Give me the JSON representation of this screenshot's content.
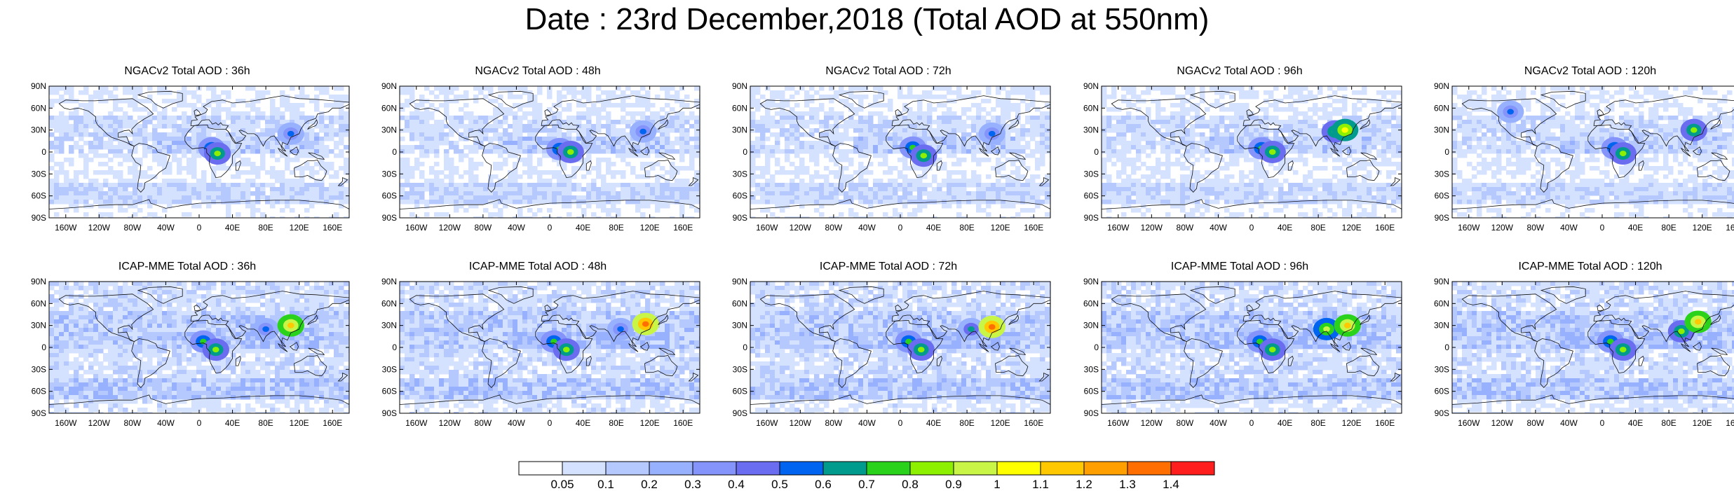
{
  "title": "Date : 23rd December,2018 (Total AOD at 550nm)",
  "lat_ticks": [
    "90N",
    "60N",
    "30N",
    "0",
    "30S",
    "60S",
    "90S"
  ],
  "lon_ticks": [
    "160W",
    "120W",
    "80W",
    "40W",
    "0",
    "40E",
    "80E",
    "120E",
    "160E"
  ],
  "lon_tick_values": [
    -160,
    -120,
    -80,
    -40,
    0,
    40,
    80,
    120,
    160
  ],
  "lat_tick_values": [
    90,
    60,
    30,
    0,
    -30,
    -60,
    -90
  ],
  "panels": [
    {
      "title": "NGACv2 Total AOD : 36h",
      "model": "NGACv2",
      "lead": 36,
      "hotspots": [
        {
          "lon": 15,
          "lat": 5,
          "level": 8
        },
        {
          "lon": 22,
          "lat": -2,
          "level": 9
        },
        {
          "lon": 110,
          "lat": 25,
          "level": 6
        }
      ]
    },
    {
      "title": "NGACv2 Total AOD : 48h",
      "model": "NGACv2",
      "lead": 48,
      "hotspots": [
        {
          "lon": 12,
          "lat": 4,
          "level": 8
        },
        {
          "lon": 25,
          "lat": 0,
          "level": 9
        },
        {
          "lon": 112,
          "lat": 28,
          "level": 6
        }
      ]
    },
    {
      "title": "NGACv2 Total AOD : 72h",
      "model": "NGACv2",
      "lead": 72,
      "hotspots": [
        {
          "lon": 15,
          "lat": 6,
          "level": 8
        },
        {
          "lon": 28,
          "lat": -5,
          "level": 9
        },
        {
          "lon": 110,
          "lat": 25,
          "level": 6
        }
      ]
    },
    {
      "title": "NGACv2 Total AOD : 96h",
      "model": "NGACv2",
      "lead": 96,
      "hotspots": [
        {
          "lon": 12,
          "lat": 5,
          "level": 8
        },
        {
          "lon": 25,
          "lat": 0,
          "level": 9
        },
        {
          "lon": 100,
          "lat": 28,
          "level": 9
        },
        {
          "lon": 112,
          "lat": 30,
          "level": 11
        }
      ]
    },
    {
      "title": "NGACv2 Total AOD : 120h",
      "model": "NGACv2",
      "lead": 120,
      "hotspots": [
        {
          "lon": 15,
          "lat": 5,
          "level": 8
        },
        {
          "lon": 25,
          "lat": -2,
          "level": 9
        },
        {
          "lon": 110,
          "lat": 30,
          "level": 9
        },
        {
          "lon": -110,
          "lat": 55,
          "level": 6
        }
      ]
    },
    {
      "title": "ICAP-MME Total AOD : 36h",
      "model": "ICAP-MME",
      "lead": 36,
      "hotspots": [
        {
          "lon": 5,
          "lat": 8,
          "level": 8
        },
        {
          "lon": 20,
          "lat": -3,
          "level": 9
        },
        {
          "lon": 80,
          "lat": 25,
          "level": 6
        },
        {
          "lon": 110,
          "lat": 30,
          "level": 12
        }
      ]
    },
    {
      "title": "ICAP-MME Total AOD : 48h",
      "model": "ICAP-MME",
      "lead": 48,
      "hotspots": [
        {
          "lon": 5,
          "lat": 8,
          "level": 8
        },
        {
          "lon": 20,
          "lat": -3,
          "level": 9
        },
        {
          "lon": 85,
          "lat": 25,
          "level": 6
        },
        {
          "lon": 115,
          "lat": 32,
          "level": 14
        }
      ]
    },
    {
      "title": "ICAP-MME Total AOD : 72h",
      "model": "ICAP-MME",
      "lead": 72,
      "hotspots": [
        {
          "lon": 10,
          "lat": 8,
          "level": 8
        },
        {
          "lon": 25,
          "lat": -3,
          "level": 9
        },
        {
          "lon": 85,
          "lat": 25,
          "level": 7
        },
        {
          "lon": 110,
          "lat": 28,
          "level": 14
        }
      ]
    },
    {
      "title": "ICAP-MME Total AOD : 96h",
      "model": "ICAP-MME",
      "lead": 96,
      "hotspots": [
        {
          "lon": 10,
          "lat": 8,
          "level": 8
        },
        {
          "lon": 25,
          "lat": -3,
          "level": 9
        },
        {
          "lon": 90,
          "lat": 25,
          "level": 10
        },
        {
          "lon": 115,
          "lat": 30,
          "level": 12
        }
      ]
    },
    {
      "title": "ICAP-MME Total AOD : 120h",
      "model": "ICAP-MME",
      "lead": 120,
      "hotspots": [
        {
          "lon": 10,
          "lat": 8,
          "level": 8
        },
        {
          "lon": 25,
          "lat": -3,
          "level": 9
        },
        {
          "lon": 95,
          "lat": 22,
          "level": 9
        },
        {
          "lon": 115,
          "lat": 35,
          "level": 12
        }
      ]
    }
  ],
  "colorbar": {
    "labels": [
      "0.05",
      "0.1",
      "0.2",
      "0.3",
      "0.4",
      "0.5",
      "0.6",
      "0.7",
      "0.8",
      "0.9",
      "1",
      "1.1",
      "1.2",
      "1.3",
      "1.4"
    ],
    "colors": [
      "#ffffff",
      "#d5e2ff",
      "#b6c9ff",
      "#98b1ff",
      "#8494fb",
      "#6a6df0",
      "#0064f0",
      "#009b8d",
      "#2bd21b",
      "#8cf000",
      "#c8f546",
      "#ffff00",
      "#ffc800",
      "#ffa000",
      "#ff6e00",
      "#ff1e1e"
    ]
  }
}
